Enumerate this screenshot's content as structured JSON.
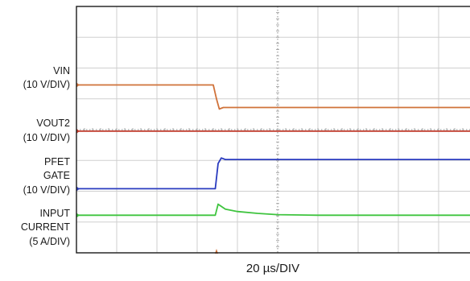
{
  "chart_data": {
    "type": "line",
    "xlabel": "20 µs/DIV",
    "x_divisions": 10,
    "y_divisions": 8,
    "grid": true,
    "series": [
      {
        "name": "VIN",
        "scale": "(10 V/DIV)",
        "color": "#d0723a",
        "points": [
          [
            0,
            2.55
          ],
          [
            3.4,
            2.55
          ],
          [
            3.48,
            3.0
          ],
          [
            3.55,
            3.33
          ],
          [
            3.65,
            3.28
          ],
          [
            10,
            3.28
          ]
        ]
      },
      {
        "name": "VOUT2",
        "scale": "(10 V/DIV)",
        "color": "#c03a2b",
        "points": [
          [
            0,
            4.05
          ],
          [
            10,
            4.05
          ]
        ]
      },
      {
        "name": "PFET GATE",
        "scale": "(10 V/DIV)",
        "color": "#2a3bbf",
        "points": [
          [
            0,
            5.92
          ],
          [
            3.45,
            5.92
          ],
          [
            3.52,
            5.1
          ],
          [
            3.6,
            4.92
          ],
          [
            3.7,
            4.97
          ],
          [
            10,
            4.97
          ]
        ]
      },
      {
        "name": "INPUT CURRENT",
        "scale": "(5 A/DIV)",
        "color": "#3fc43f",
        "points": [
          [
            0,
            6.78
          ],
          [
            3.45,
            6.78
          ],
          [
            3.52,
            6.42
          ],
          [
            3.7,
            6.58
          ],
          [
            4.0,
            6.66
          ],
          [
            4.5,
            6.72
          ],
          [
            5.0,
            6.76
          ],
          [
            6.0,
            6.78
          ],
          [
            10,
            6.78
          ]
        ]
      }
    ]
  }
}
